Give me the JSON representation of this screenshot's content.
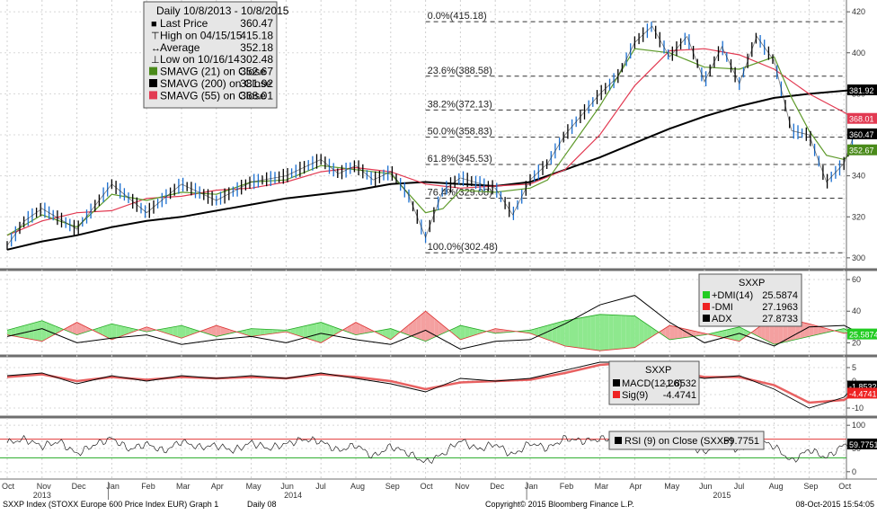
{
  "chart_data": {
    "type": "line",
    "instrument": "SXXP Index (STOXX Europe 600 Price Index EUR) Graph 1",
    "periodicity": "Daily 08",
    "copyright": "Copyright© 2015 Bloomberg Finance L.P.",
    "timestamp": "08-Oct-2015 15:54:05",
    "legend": {
      "title": "Daily 10/8/2013 - 10/8/2015",
      "rows": [
        {
          "label": "Last Price",
          "value": "360.47",
          "color": "#000000"
        },
        {
          "label": "High on 04/15/15",
          "value": "415.18",
          "color": "#000000"
        },
        {
          "label": "Average",
          "value": "352.18",
          "color": "#000000"
        },
        {
          "label": "Low on 10/16/14",
          "value": "302.48",
          "color": "#000000"
        },
        {
          "label": "SMAVG (21) on Close",
          "value": "352.67",
          "color": "#4a8a1a"
        },
        {
          "label": "SMAVG (200) on Close",
          "value": "381.92",
          "color": "#000000"
        },
        {
          "label": "SMAVG (55) on Close",
          "value": "368.01",
          "color": "#e23a52"
        }
      ]
    },
    "x_axis": {
      "months": [
        "Oct",
        "Nov",
        "Dec",
        "Jan",
        "Feb",
        "Mar",
        "Apr",
        "May",
        "Jun",
        "Jul",
        "Aug",
        "Sep",
        "Oct",
        "Nov",
        "Dec",
        "Jan",
        "Feb",
        "Mar",
        "Apr",
        "May",
        "Jun",
        "Jul",
        "Aug",
        "Sep",
        "Oct"
      ],
      "years": [
        "2013",
        "2014",
        "2015"
      ]
    },
    "price_panel": {
      "ylim": [
        296,
        424
      ],
      "yticks": [
        300,
        320,
        340,
        360,
        380,
        400,
        420
      ],
      "fib_levels": [
        {
          "label": "0.0%(415.18)",
          "value": 415.18
        },
        {
          "label": "23.6%(388.58)",
          "value": 388.58
        },
        {
          "label": "38.2%(372.13)",
          "value": 372.13
        },
        {
          "label": "50.0%(358.83)",
          "value": 358.83
        },
        {
          "label": "61.8%(345.53)",
          "value": 345.53
        },
        {
          "label": "76.4%(329.08)",
          "value": 329.08
        },
        {
          "label": "100.0%(302.48)",
          "value": 302.48
        }
      ],
      "price": {
        "x": [
          0,
          0.5,
          1,
          2,
          3,
          4,
          5,
          6,
          7,
          8,
          9,
          9.5,
          10,
          10.5,
          11,
          11.5,
          12,
          12.5,
          13,
          14,
          14.5,
          15,
          15.5,
          16,
          17,
          17.5,
          18,
          18.5,
          19,
          19.5,
          20,
          20.5,
          21,
          21.5,
          22,
          22.5,
          23,
          23.5,
          24,
          24.3
        ],
        "y": [
          306,
          318,
          324,
          314,
          336,
          322,
          336,
          328,
          337,
          340,
          348,
          341,
          345,
          338,
          342,
          331,
          310,
          333,
          339,
          334,
          321,
          338,
          346,
          360,
          380,
          388,
          405,
          413,
          398,
          408,
          386,
          403,
          385,
          408,
          396,
          362,
          360,
          337,
          346,
          360.47
        ]
      },
      "sma21": {
        "x": [
          0,
          1,
          2,
          3,
          4,
          5,
          6,
          7,
          8,
          9,
          10,
          11,
          12,
          12.5,
          13,
          14,
          15,
          15.5,
          16,
          17,
          18,
          19,
          20,
          21,
          22,
          22.5,
          23,
          23.5,
          24,
          24.3
        ],
        "y": [
          311,
          321,
          315,
          331,
          328,
          332,
          331,
          337,
          338,
          345,
          343,
          341,
          322,
          324,
          333,
          332,
          334,
          338,
          350,
          374,
          402,
          400,
          393,
          392,
          398,
          378,
          362,
          350,
          348,
          352.67
        ]
      },
      "sma55": {
        "x": [
          0,
          1,
          2,
          3,
          4,
          5,
          6,
          7,
          8,
          9,
          10,
          11,
          12,
          13,
          14,
          15,
          16,
          17,
          18,
          19,
          20,
          21,
          22,
          23,
          24,
          24.3
        ],
        "y": [
          311,
          318,
          322,
          323,
          329,
          330,
          333,
          334,
          337,
          342,
          344,
          342,
          336,
          334,
          335,
          336,
          343,
          360,
          384,
          401,
          402,
          399,
          392,
          380,
          371,
          368.01
        ]
      },
      "sma200": {
        "x": [
          0,
          1,
          2,
          3,
          4,
          5,
          6,
          7,
          8,
          9,
          10,
          11,
          12,
          13,
          14,
          15,
          16,
          17,
          18,
          19,
          20,
          21,
          22,
          23,
          24,
          24.3
        ],
        "y": [
          304,
          308,
          311,
          315,
          318,
          320,
          323,
          326,
          329,
          331,
          333,
          336,
          337,
          336,
          335,
          337,
          343,
          349,
          356,
          363,
          369,
          374,
          378,
          380,
          381.5,
          381.92
        ]
      },
      "right_labels": [
        {
          "text": "381.92",
          "value": 381.92,
          "color": "#000000",
          "fg": "#ffffff"
        },
        {
          "text": "368.01",
          "value": 368.01,
          "color": "#e23a52",
          "fg": "#ffffff"
        },
        {
          "text": "360.47",
          "value": 360.47,
          "color": "#000000",
          "fg": "#ffffff"
        },
        {
          "text": "352.67",
          "value": 352.67,
          "color": "#4a8a1a",
          "fg": "#ffffff"
        }
      ]
    },
    "dmi_panel": {
      "ylim": [
        14,
        64
      ],
      "yticks": [
        20,
        40,
        60
      ],
      "legend_title": "SXXP",
      "rows": [
        {
          "label": "+DMI(14)",
          "value": "25.5874",
          "color": "#22cc22"
        },
        {
          "label": "-DMI",
          "value": "27.1963",
          "color": "#ee2222"
        },
        {
          "label": "ADX",
          "value": "27.8733",
          "color": "#000000"
        }
      ],
      "right_label": {
        "text": "25.5874",
        "value": 25.5874,
        "color": "#22cc22"
      },
      "plus_dmi": {
        "x": [
          0,
          1,
          2,
          3,
          4,
          5,
          6,
          7,
          8,
          9,
          10,
          11,
          12,
          13,
          14,
          15,
          16,
          17,
          18,
          19,
          20,
          21,
          22,
          23,
          24,
          24.3
        ],
        "y": [
          28,
          34,
          25,
          32,
          27,
          31,
          24,
          29,
          28,
          33,
          25,
          29,
          21,
          31,
          26,
          28,
          34,
          38,
          37,
          22,
          25,
          30,
          19,
          24,
          29,
          25.59
        ]
      },
      "minus_dmi": {
        "x": [
          0,
          1,
          2,
          3,
          4,
          5,
          6,
          7,
          8,
          9,
          10,
          11,
          12,
          13,
          14,
          15,
          16,
          17,
          18,
          19,
          20,
          21,
          22,
          23,
          24,
          24.3
        ],
        "y": [
          25,
          21,
          33,
          22,
          30,
          23,
          31,
          24,
          27,
          20,
          33,
          22,
          40,
          22,
          29,
          26,
          18,
          15,
          17,
          31,
          26,
          21,
          37,
          32,
          26,
          27.2
        ]
      },
      "adx": {
        "x": [
          0,
          1,
          2,
          3,
          4,
          5,
          6,
          7,
          8,
          9,
          10,
          11,
          12,
          13,
          14,
          15,
          16,
          17,
          18,
          19,
          20,
          21,
          22,
          23,
          24,
          24.3
        ],
        "y": [
          24,
          29,
          20,
          23,
          25,
          19,
          22,
          24,
          20,
          26,
          22,
          19,
          28,
          16,
          21,
          22,
          32,
          44,
          50,
          33,
          20,
          26,
          18,
          30,
          31,
          27.87
        ]
      }
    },
    "macd_panel": {
      "ylim": [
        -12,
        8
      ],
      "yticks": [
        -10,
        -5,
        0,
        5
      ],
      "legend_title": "SXXP",
      "rows": [
        {
          "label": "MACD(12,26)",
          "value": "-1.8532",
          "color": "#000000"
        },
        {
          "label": "Sig(9)",
          "value": "-4.4741",
          "color": "#ee2222"
        }
      ],
      "right_labels": [
        {
          "text": "-1.8532",
          "value": -1.8532,
          "color": "#000000"
        },
        {
          "text": "-4.4741",
          "value": -4.4741,
          "color": "#ee2222"
        }
      ],
      "macd": {
        "x": [
          0,
          1,
          2,
          3,
          4,
          5,
          6,
          7,
          8,
          9,
          10,
          11,
          12,
          13,
          14,
          15,
          16,
          17,
          18,
          19,
          20,
          21,
          22,
          23,
          24,
          24.3
        ],
        "y": [
          2,
          3,
          -1,
          2,
          0,
          2,
          1,
          2,
          1,
          3,
          1,
          -1,
          -4,
          1,
          0,
          1,
          4,
          7,
          7,
          3,
          1,
          2,
          -3,
          -10,
          -6,
          -1.85
        ]
      },
      "sig": {
        "x": [
          0,
          1,
          2,
          3,
          4,
          5,
          6,
          7,
          8,
          9,
          10,
          11,
          12,
          13,
          14,
          15,
          16,
          17,
          18,
          19,
          20,
          21,
          22,
          23,
          24,
          24.3
        ],
        "y": [
          1.5,
          2.5,
          0,
          1.5,
          0.5,
          1.5,
          1,
          1.5,
          1,
          2.5,
          1.5,
          0,
          -3,
          -0.5,
          0,
          0.5,
          3,
          6,
          7,
          4,
          1.5,
          1.5,
          -1.5,
          -8,
          -7,
          -4.47
        ]
      }
    },
    "rsi_panel": {
      "ylim": [
        -10,
        110
      ],
      "yticks": [
        0,
        50,
        100
      ],
      "overbought": 70,
      "oversold": 30,
      "legend": {
        "label": "RSI (9) on Close (SXXP)",
        "value": "59.7751"
      },
      "right_label": {
        "text": "59.7751",
        "value": 59.7751,
        "color": "#000000"
      },
      "rsi": {
        "x": [
          0,
          0.5,
          1,
          1.5,
          2,
          2.5,
          3,
          3.5,
          4,
          4.5,
          5,
          5.5,
          6,
          6.5,
          7,
          7.5,
          8,
          8.5,
          9,
          9.5,
          10,
          10.5,
          11,
          11.5,
          12,
          12.5,
          13,
          13.5,
          14,
          14.5,
          15,
          15.5,
          16,
          16.5,
          17,
          17.5,
          18,
          18.5,
          19,
          19.5,
          20,
          20.5,
          21,
          21.5,
          22,
          22.5,
          23,
          23.5,
          24,
          24.3
        ],
        "y": [
          62,
          70,
          55,
          65,
          38,
          58,
          72,
          48,
          60,
          44,
          66,
          52,
          57,
          45,
          63,
          50,
          60,
          70,
          65,
          45,
          58,
          32,
          55,
          40,
          20,
          38,
          68,
          48,
          60,
          35,
          62,
          50,
          72,
          66,
          70,
          74,
          68,
          72,
          52,
          62,
          40,
          68,
          45,
          70,
          55,
          22,
          48,
          30,
          58,
          59.78
        ]
      }
    }
  }
}
